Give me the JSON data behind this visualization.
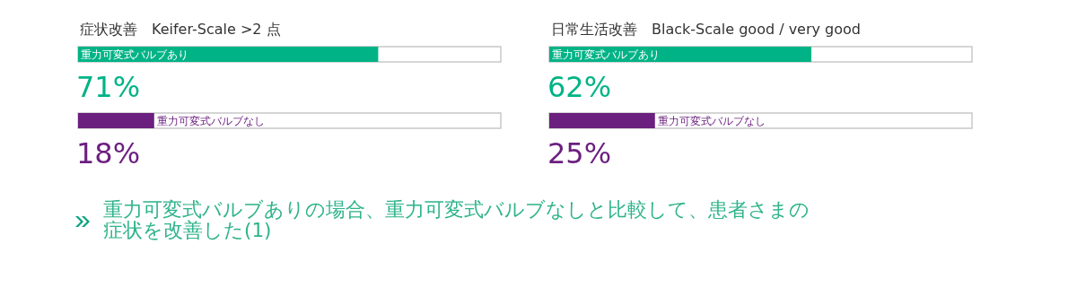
{
  "chart_data": [
    {
      "type": "bar",
      "orientation": "horizontal",
      "title": "症状改善　Keifer-Scale >2 点",
      "categories": [
        "重力可変式バルブあり",
        "重力可変式バルブなし"
      ],
      "values": [
        71,
        18
      ],
      "colors": [
        "#00b386",
        "#6b1f7f"
      ],
      "value_labels": [
        "71%",
        "18%"
      ],
      "xlim": [
        0,
        100
      ],
      "tick_labels": false,
      "annotations": [
        "重力可変式バルブありの場合、重力可変式バルブなしと比較して、患者さまの症状を改善した(1)"
      ]
    },
    {
      "type": "bar",
      "orientation": "horizontal",
      "title": "日常生活改善　Black-Scale good / very good",
      "categories": [
        "重力可変式バルブあり",
        "重力可変式バルブなし"
      ],
      "values": [
        62,
        25
      ],
      "colors": [
        "#00b386",
        "#6b1f7f"
      ],
      "value_labels": [
        "62%",
        "25%"
      ],
      "xlim": [
        0,
        100
      ],
      "tick_labels": false
    }
  ]
}
